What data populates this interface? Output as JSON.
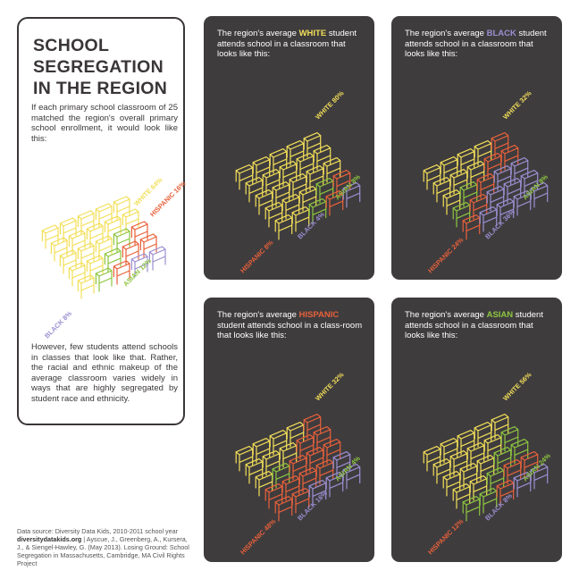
{
  "title": "SCHOOL SEGREGATION IN THE REGION",
  "intro": "If each primary school classroom of 25 matched the region's overall primary school enrollment, it would look like this:",
  "outro": "However, few students attend schools in classes that look like that. Rather, the racial and ethnic makeup of the average classroom varies widely in ways that are highly segregated by student race and ethnicity.",
  "source": {
    "line1": "Data source: Diversity Data Kids, 2010-2011 school year",
    "site": "diversitydatakids.org",
    "line2": " | Ayscue, J., Greenberg, A., Kursera, J., & Siengel-Hawley, G. (May 2013). Losing Ground: School Segregation in Massachusetts, Cambridge, MA Civil Rights Project"
  },
  "colors": {
    "white": "#f2df58",
    "hispanic": "#e8613a",
    "black": "#9b8fd1",
    "asian": "#8dc63f",
    "panel": "#3f3c3e"
  },
  "overall": {
    "labels": {
      "white": "WHITE 64%",
      "hispanic": "HISPANIC 16%",
      "asian": "ASIAN 12%",
      "black": "BLACK 8%"
    },
    "counts": {
      "white": 16,
      "hispanic": 4,
      "asian": 3,
      "black": 2
    }
  },
  "panels": [
    {
      "id": "white",
      "title_pre": "The region's average ",
      "highlight": "WHITE",
      "title_post": " student attends school in a classroom that looks like this:",
      "labels": {
        "white": "WHITE 80%",
        "hispanic": "HISPANIC 8%",
        "black": "BLACK 4%",
        "asian": "ASIAN 8%"
      },
      "counts": {
        "white": 20,
        "hispanic": 2,
        "black": 1,
        "asian": 2
      }
    },
    {
      "id": "black",
      "title_pre": "The region's average ",
      "highlight": "BLACK",
      "title_post": " student attends school in a classroom that looks like this:",
      "labels": {
        "white": "WHITE 32%",
        "hispanic": "HISPANIC 24%",
        "black": "BLACK 36%",
        "asian": "ASIAN 8%"
      },
      "counts": {
        "white": 8,
        "hispanic": 6,
        "black": 9,
        "asian": 2
      }
    },
    {
      "id": "hispanic",
      "title_pre": "The region's average ",
      "highlight": "HISPANIC",
      "title_post": " student attends school in a class-room that looks like this:",
      "labels": {
        "white": "WHITE 32%",
        "hispanic": "HISPANIC 48%",
        "black": "BLACK 16%",
        "asian": "ASIAN 4%"
      },
      "counts": {
        "white": 8,
        "hispanic": 12,
        "black": 4,
        "asian": 1
      }
    },
    {
      "id": "asian",
      "title_pre": "The region's average ",
      "highlight": "ASIAN",
      "title_post": " student attends school in a classroom that looks like this:",
      "labels": {
        "white": "WHITE 56%",
        "hispanic": "HISPANIC 12%",
        "black": "BLACK 8%",
        "asian": "ASIAN 24%"
      },
      "counts": {
        "white": 14,
        "hispanic": 3,
        "black": 2,
        "asian": 6
      }
    }
  ]
}
